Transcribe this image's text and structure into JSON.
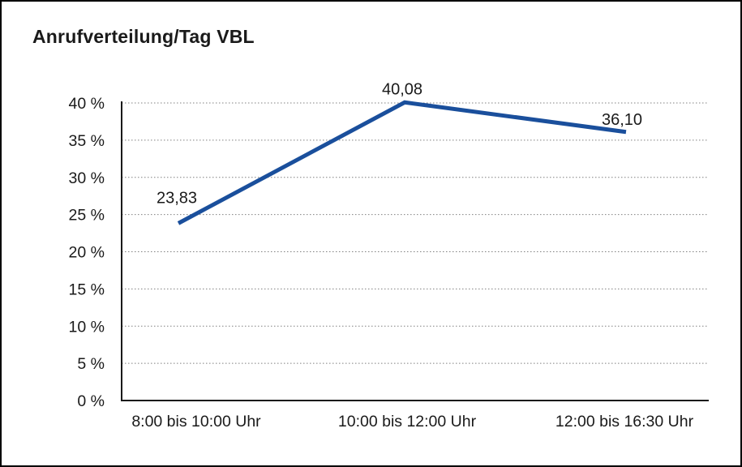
{
  "window": {
    "background": "#ffffff",
    "border_color": "#000000"
  },
  "chart_data": {
    "type": "line",
    "title": "Anrufverteilung/Tag VBL",
    "categories": [
      "8:00 bis 10:00 Uhr",
      "10:00 bis 12:00 Uhr",
      "12:00 bis 16:30 Uhr"
    ],
    "values": [
      23.83,
      40.08,
      36.1
    ],
    "point_labels": [
      "23,83",
      "40,08",
      "36,10"
    ],
    "xlabel": "",
    "ylabel": "",
    "ylim": [
      0,
      40
    ],
    "y_tick_values": [
      0,
      5,
      10,
      15,
      20,
      25,
      30,
      35,
      40
    ],
    "y_tick_labels": [
      "0 %",
      "5 %",
      "10 %",
      "15 %",
      "20 %",
      "25 %",
      "30 %",
      "35 %",
      "40 %"
    ],
    "grid": "horizontal-dotted",
    "legend_position": "none",
    "decimal_separator": ","
  },
  "colors": {
    "line": "#1A4F9C",
    "axis": "#1a1a1a",
    "grid": "#808080",
    "text": "#1a1a1a",
    "data_label": "#1a1a1a"
  }
}
